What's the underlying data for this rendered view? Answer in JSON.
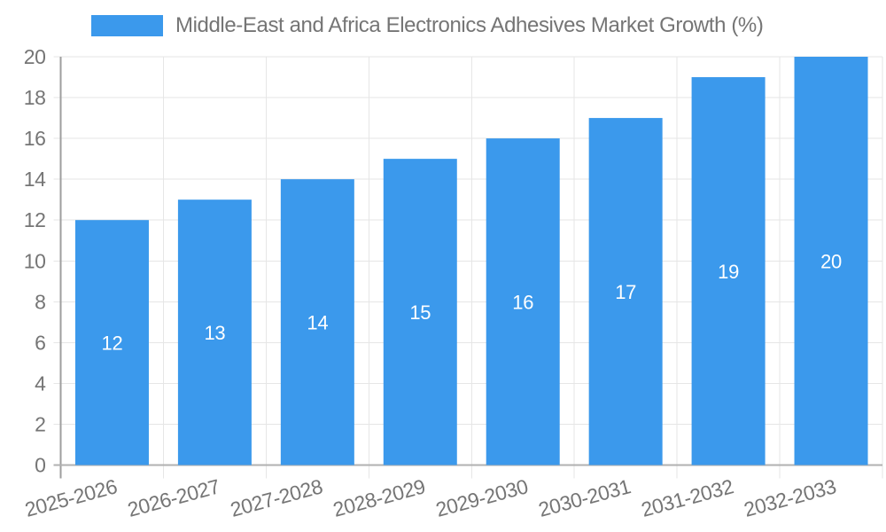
{
  "legend": {
    "label": "Middle-East and Africa Electronics Adhesives Market Growth (%)"
  },
  "chart_data": {
    "type": "bar",
    "title": "Middle-East and Africa Electronics Adhesives Market Growth (%)",
    "categories": [
      "2025-2026",
      "2026-2027",
      "2027-2028",
      "2028-2029",
      "2029-2030",
      "2030-2031",
      "2031-2032",
      "2032-2033"
    ],
    "values": [
      12,
      13,
      14,
      15,
      16,
      17,
      19,
      20
    ],
    "xlabel": "",
    "ylabel": "",
    "ylim": [
      0,
      20
    ],
    "ytick_step": 2,
    "yticks": [
      0,
      2,
      4,
      6,
      8,
      10,
      12,
      14,
      16,
      18,
      20
    ],
    "grid": true,
    "legend_position": "top",
    "bar_value_labels_inside": true,
    "colors": {
      "bar": "#3B99EC",
      "bar_label": "#FFFFFF",
      "axis_text": "#757575",
      "grid_line": "#E6E6E6",
      "y_axis_line": "#9E9E9E",
      "x_axis_line": "#B0B0B0",
      "background": "#FFFFFF"
    }
  }
}
